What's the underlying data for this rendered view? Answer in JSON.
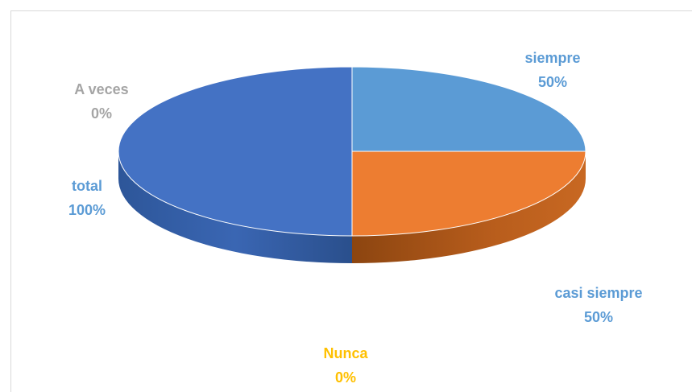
{
  "chart_data": {
    "type": "pie",
    "style": "3d",
    "slices": [
      {
        "label": "siempre",
        "value": 25,
        "percent_label": "50%",
        "color": "#5b9bd5",
        "label_color": "#5b9bd5"
      },
      {
        "label": "casi siempre",
        "value": 25,
        "percent_label": "50%",
        "color": "#ed7d31",
        "label_color": "#5b9bd5"
      },
      {
        "label": "Nunca",
        "value": 0,
        "percent_label": "0%",
        "color": "#ffc000",
        "label_color": "#ffc000"
      },
      {
        "label": "A veces",
        "value": 0,
        "percent_label": "0%",
        "color": "#a5a5a5",
        "label_color": "#a5a5a5"
      },
      {
        "label": "total",
        "value": 50,
        "percent_label": "100%",
        "color": "#4472c4",
        "label_color": "#5b9bd5"
      }
    ]
  }
}
